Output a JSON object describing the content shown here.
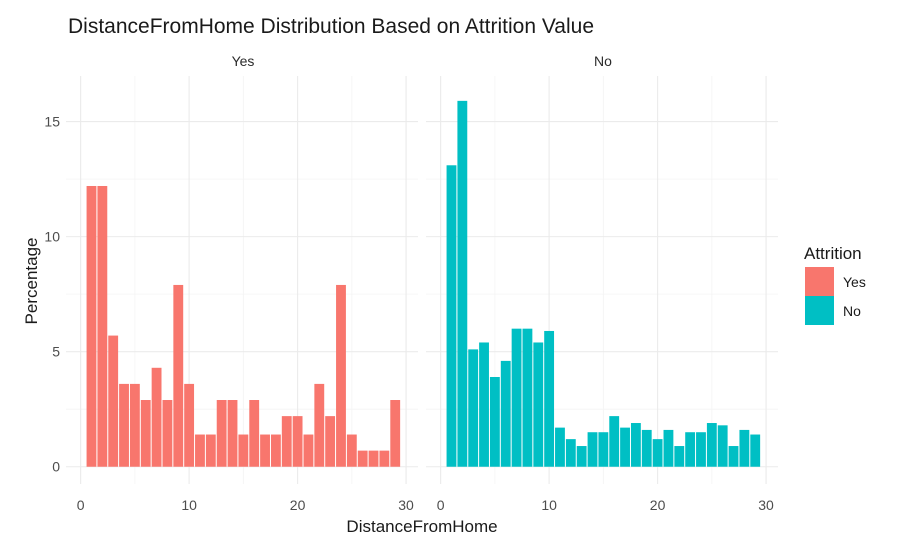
{
  "chart_data": {
    "type": "bar",
    "subtype": "faceted-histogram",
    "title": "DistanceFromHome Distribution Based on Attrition Value",
    "xlabel": "DistanceFromHome",
    "ylabel": "Percentage",
    "xlim": [
      0,
      30
    ],
    "ylim": [
      0,
      16
    ],
    "x_ticks": [
      0,
      10,
      20,
      30
    ],
    "y_ticks": [
      0,
      5,
      10,
      15
    ],
    "grid": true,
    "legend": {
      "title": "Attrition",
      "position": "right",
      "items": [
        {
          "label": "Yes",
          "color": "#F8766D"
        },
        {
          "label": "No",
          "color": "#00BFC4"
        }
      ]
    },
    "facets": [
      {
        "label": "Yes",
        "color": "#F8766D",
        "x": [
          1,
          2,
          3,
          4,
          5,
          6,
          7,
          8,
          9,
          10,
          11,
          12,
          13,
          14,
          15,
          16,
          17,
          18,
          19,
          20,
          21,
          22,
          23,
          24,
          25,
          26,
          27,
          28,
          29
        ],
        "values": [
          12.2,
          12.2,
          5.7,
          3.6,
          3.6,
          2.9,
          4.3,
          2.9,
          7.9,
          3.6,
          1.4,
          1.4,
          2.9,
          2.9,
          1.4,
          2.9,
          1.4,
          1.4,
          2.2,
          2.2,
          1.4,
          3.6,
          2.2,
          7.9,
          1.4,
          0.7,
          0.7,
          0.7,
          2.9
        ]
      },
      {
        "label": "No",
        "color": "#00BFC4",
        "x": [
          1,
          2,
          3,
          4,
          5,
          6,
          7,
          8,
          9,
          10,
          11,
          12,
          13,
          14,
          15,
          16,
          17,
          18,
          19,
          20,
          21,
          22,
          23,
          24,
          25,
          26,
          27,
          28,
          29
        ],
        "values": [
          13.1,
          15.9,
          5.1,
          5.4,
          3.9,
          4.6,
          6.0,
          6.0,
          5.4,
          5.9,
          1.7,
          1.2,
          0.9,
          1.5,
          1.5,
          2.2,
          1.7,
          1.9,
          1.6,
          1.2,
          1.6,
          0.9,
          1.5,
          1.5,
          1.9,
          1.8,
          0.9,
          1.6,
          1.4
        ]
      }
    ]
  }
}
